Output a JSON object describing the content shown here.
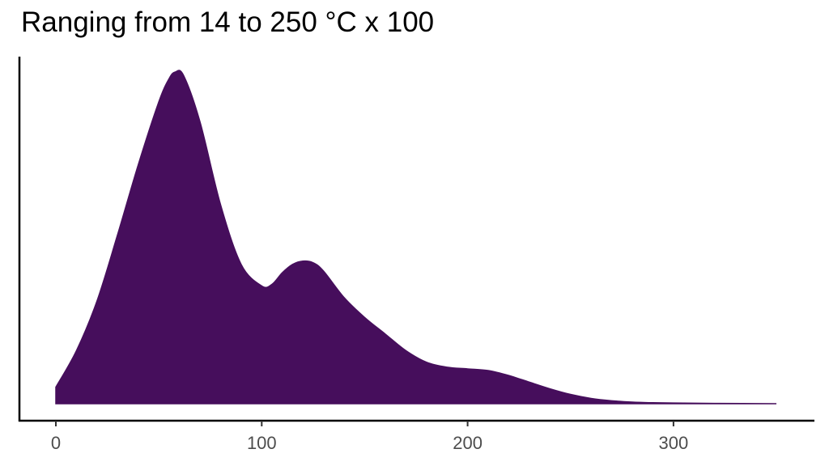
{
  "chart_data": {
    "type": "area",
    "title": "Ranging from 14 to 250 °C x 100",
    "xlabel": "",
    "ylabel": "",
    "xlim": [
      0,
      350
    ],
    "ylim": [
      0,
      1
    ],
    "grid": false,
    "x_ticks": [
      0,
      100,
      200,
      300
    ],
    "x_tick_labels": [
      "0",
      "100",
      "200",
      "300"
    ],
    "color": "#460E5C",
    "series": [
      {
        "x": [
          0,
          10,
          20,
          30,
          40,
          50,
          55,
          58,
          62,
          70,
          80,
          90,
          100,
          105,
          110,
          115,
          120,
          125,
          130,
          140,
          150,
          160,
          170,
          180,
          190,
          200,
          210,
          220,
          230,
          240,
          250,
          260,
          270,
          280,
          290,
          300,
          320,
          350
        ],
        "y": [
          0.05,
          0.16,
          0.31,
          0.51,
          0.72,
          0.91,
          0.98,
          1.0,
          0.99,
          0.85,
          0.6,
          0.42,
          0.355,
          0.36,
          0.395,
          0.42,
          0.43,
          0.425,
          0.4,
          0.32,
          0.26,
          0.21,
          0.16,
          0.125,
          0.11,
          0.105,
          0.1,
          0.085,
          0.065,
          0.045,
          0.028,
          0.016,
          0.009,
          0.005,
          0.003,
          0.002,
          0.001,
          0.0
        ]
      }
    ]
  }
}
